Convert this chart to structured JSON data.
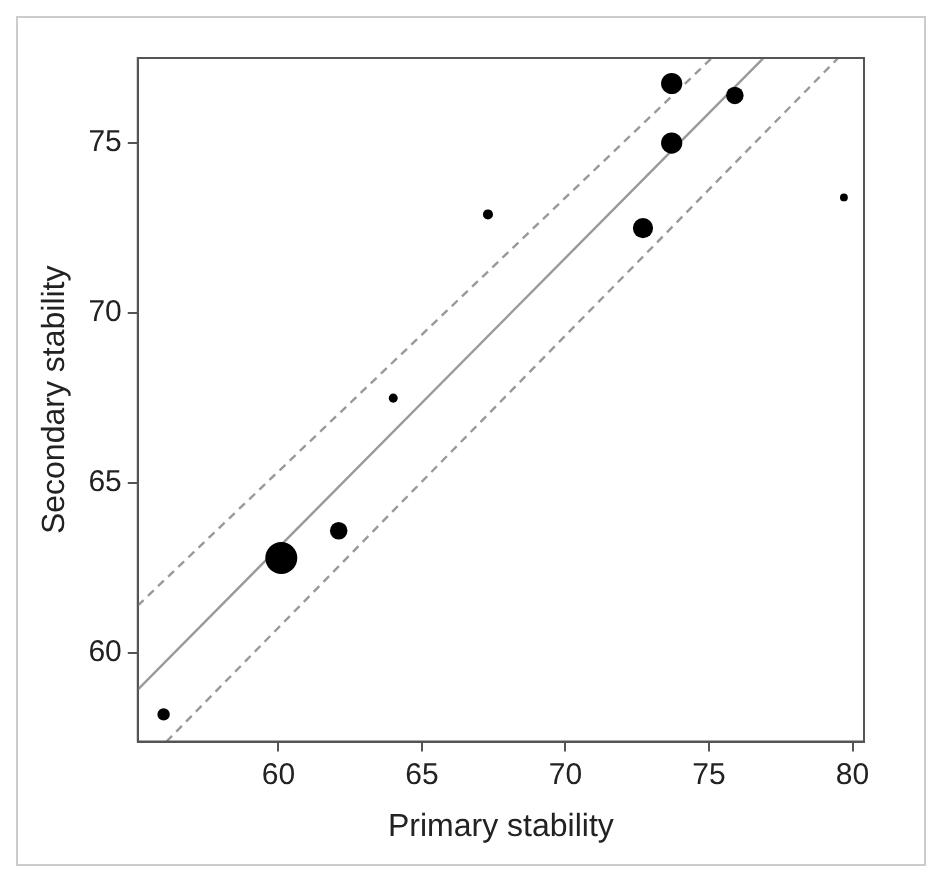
{
  "chart_data": {
    "type": "bubble",
    "xlabel": "Primary stability",
    "ylabel": "Secondary stability",
    "xlim": [
      55.1,
      80.4
    ],
    "ylim": [
      57.4,
      77.5
    ],
    "xticks": [
      60,
      65,
      70,
      75,
      80
    ],
    "yticks": [
      60,
      65,
      70,
      75
    ],
    "grid": false,
    "legend": false,
    "series": [
      {
        "type": "bubble",
        "color": "#000000",
        "x": [
          73.7,
          75.9,
          73.7,
          67.3,
          72.7,
          79.7,
          64.0,
          60.1,
          62.1,
          56.0
        ],
        "values": [
          76.75,
          76.4,
          75.0,
          72.9,
          72.5,
          73.4,
          67.5,
          62.8,
          63.6,
          58.2
        ],
        "sizes": [
          0.44,
          0.3,
          0.44,
          0.1,
          0.4,
          0.06,
          0.08,
          1,
          0.3,
          0.15
        ]
      },
      {
        "type": "line",
        "color": "#999999",
        "line_style": "solid",
        "marker": "none",
        "x": [
          55.1,
          76.9
        ],
        "values": [
          58.93,
          77.5
        ]
      },
      {
        "type": "line",
        "color": "#999999",
        "line_style": "dashed",
        "marker": "none",
        "x": [
          55.1,
          75.1
        ],
        "values": [
          61.4,
          77.5
        ]
      },
      {
        "type": "line",
        "color": "#999999",
        "line_style": "dashed",
        "marker": "none",
        "x": [
          56.1,
          79.5
        ],
        "values": [
          57.4,
          77.5
        ]
      }
    ]
  }
}
